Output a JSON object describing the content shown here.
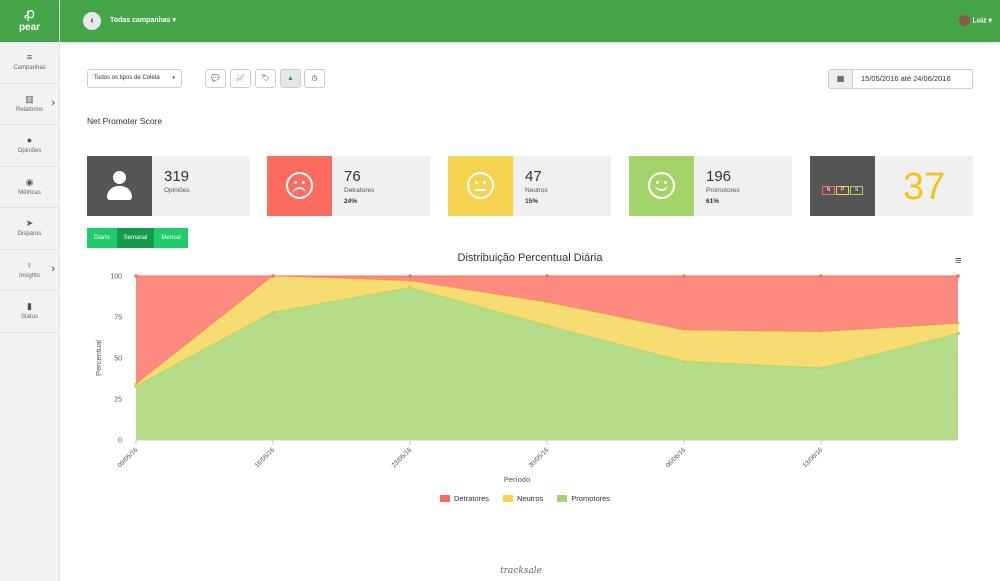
{
  "brand": {
    "logo_mark": "ꝓ",
    "name": "pear"
  },
  "sidebar": {
    "items": [
      {
        "label": "Campanhas",
        "icon": "≡"
      },
      {
        "label": "Relatórios",
        "icon": "▥"
      },
      {
        "label": "Opiniões",
        "icon": "●"
      },
      {
        "label": "Métricas",
        "icon": "◉"
      },
      {
        "label": "Disparos",
        "icon": "➤"
      },
      {
        "label": "Insights",
        "icon": "♀"
      },
      {
        "label": "Status",
        "icon": "▮"
      }
    ]
  },
  "topbar": {
    "back": "‹",
    "campaign": "Todas campanhas ▾",
    "user": "Luiz ▾"
  },
  "filters": {
    "tipo": "Todos os tipos de Coleta",
    "caret": "▾",
    "icons": [
      "💬",
      "📈",
      "🏷",
      "▲",
      "◷"
    ],
    "calendar_icon": "▦",
    "date_range": "15/05/2016 até 24/06/2016"
  },
  "section_title": "Net Promoter Score",
  "cards": {
    "opinioes": {
      "value": "319",
      "label": "Opiniões"
    },
    "detratores": {
      "value": "76",
      "label": "Detratores",
      "pct": "24%"
    },
    "neutros": {
      "value": "47",
      "label": "Neutros",
      "pct": "15%"
    },
    "promotores": {
      "value": "196",
      "label": "Promotores",
      "pct": "61%"
    },
    "nps": {
      "value": "37",
      "letters": [
        "N",
        "P",
        "S"
      ]
    }
  },
  "period": [
    "Diário",
    "Semanal",
    "Mensal"
  ],
  "colors": {
    "green": "#45a549",
    "detratores": "#fd6d5f",
    "neutros": "#f5d34e",
    "promotores": "#a3d36a",
    "nps_dark": "#555555"
  },
  "footer": "tracksale",
  "chart_data": {
    "type": "area",
    "title": "Distribuição Percentual Diária",
    "xlabel": "Período",
    "ylabel": "Percentual",
    "ylim": [
      0,
      100
    ],
    "yticks": [
      0,
      25,
      50,
      75,
      100
    ],
    "x": [
      "2016-05-09",
      "2016-05-16",
      "2016-05-23",
      "2016-05-30",
      "2016-06-06",
      "2016-06-13",
      "2016-06-20"
    ],
    "xtick_labels": [
      "09/05/16",
      "16/05/16",
      "23/05/16",
      "30/05/16",
      "06/06/16",
      "13/06/16"
    ],
    "stacked": true,
    "series": [
      {
        "name": "Promotores",
        "values": [
          33,
          78,
          93,
          70,
          48,
          44,
          65
        ]
      },
      {
        "name": "Neutros",
        "values": [
          1,
          22,
          4,
          14,
          19,
          22,
          6
        ]
      },
      {
        "name": "Detratores",
        "values": [
          66,
          0,
          3,
          16,
          33,
          34,
          29
        ]
      }
    ],
    "legend": "bottom"
  }
}
